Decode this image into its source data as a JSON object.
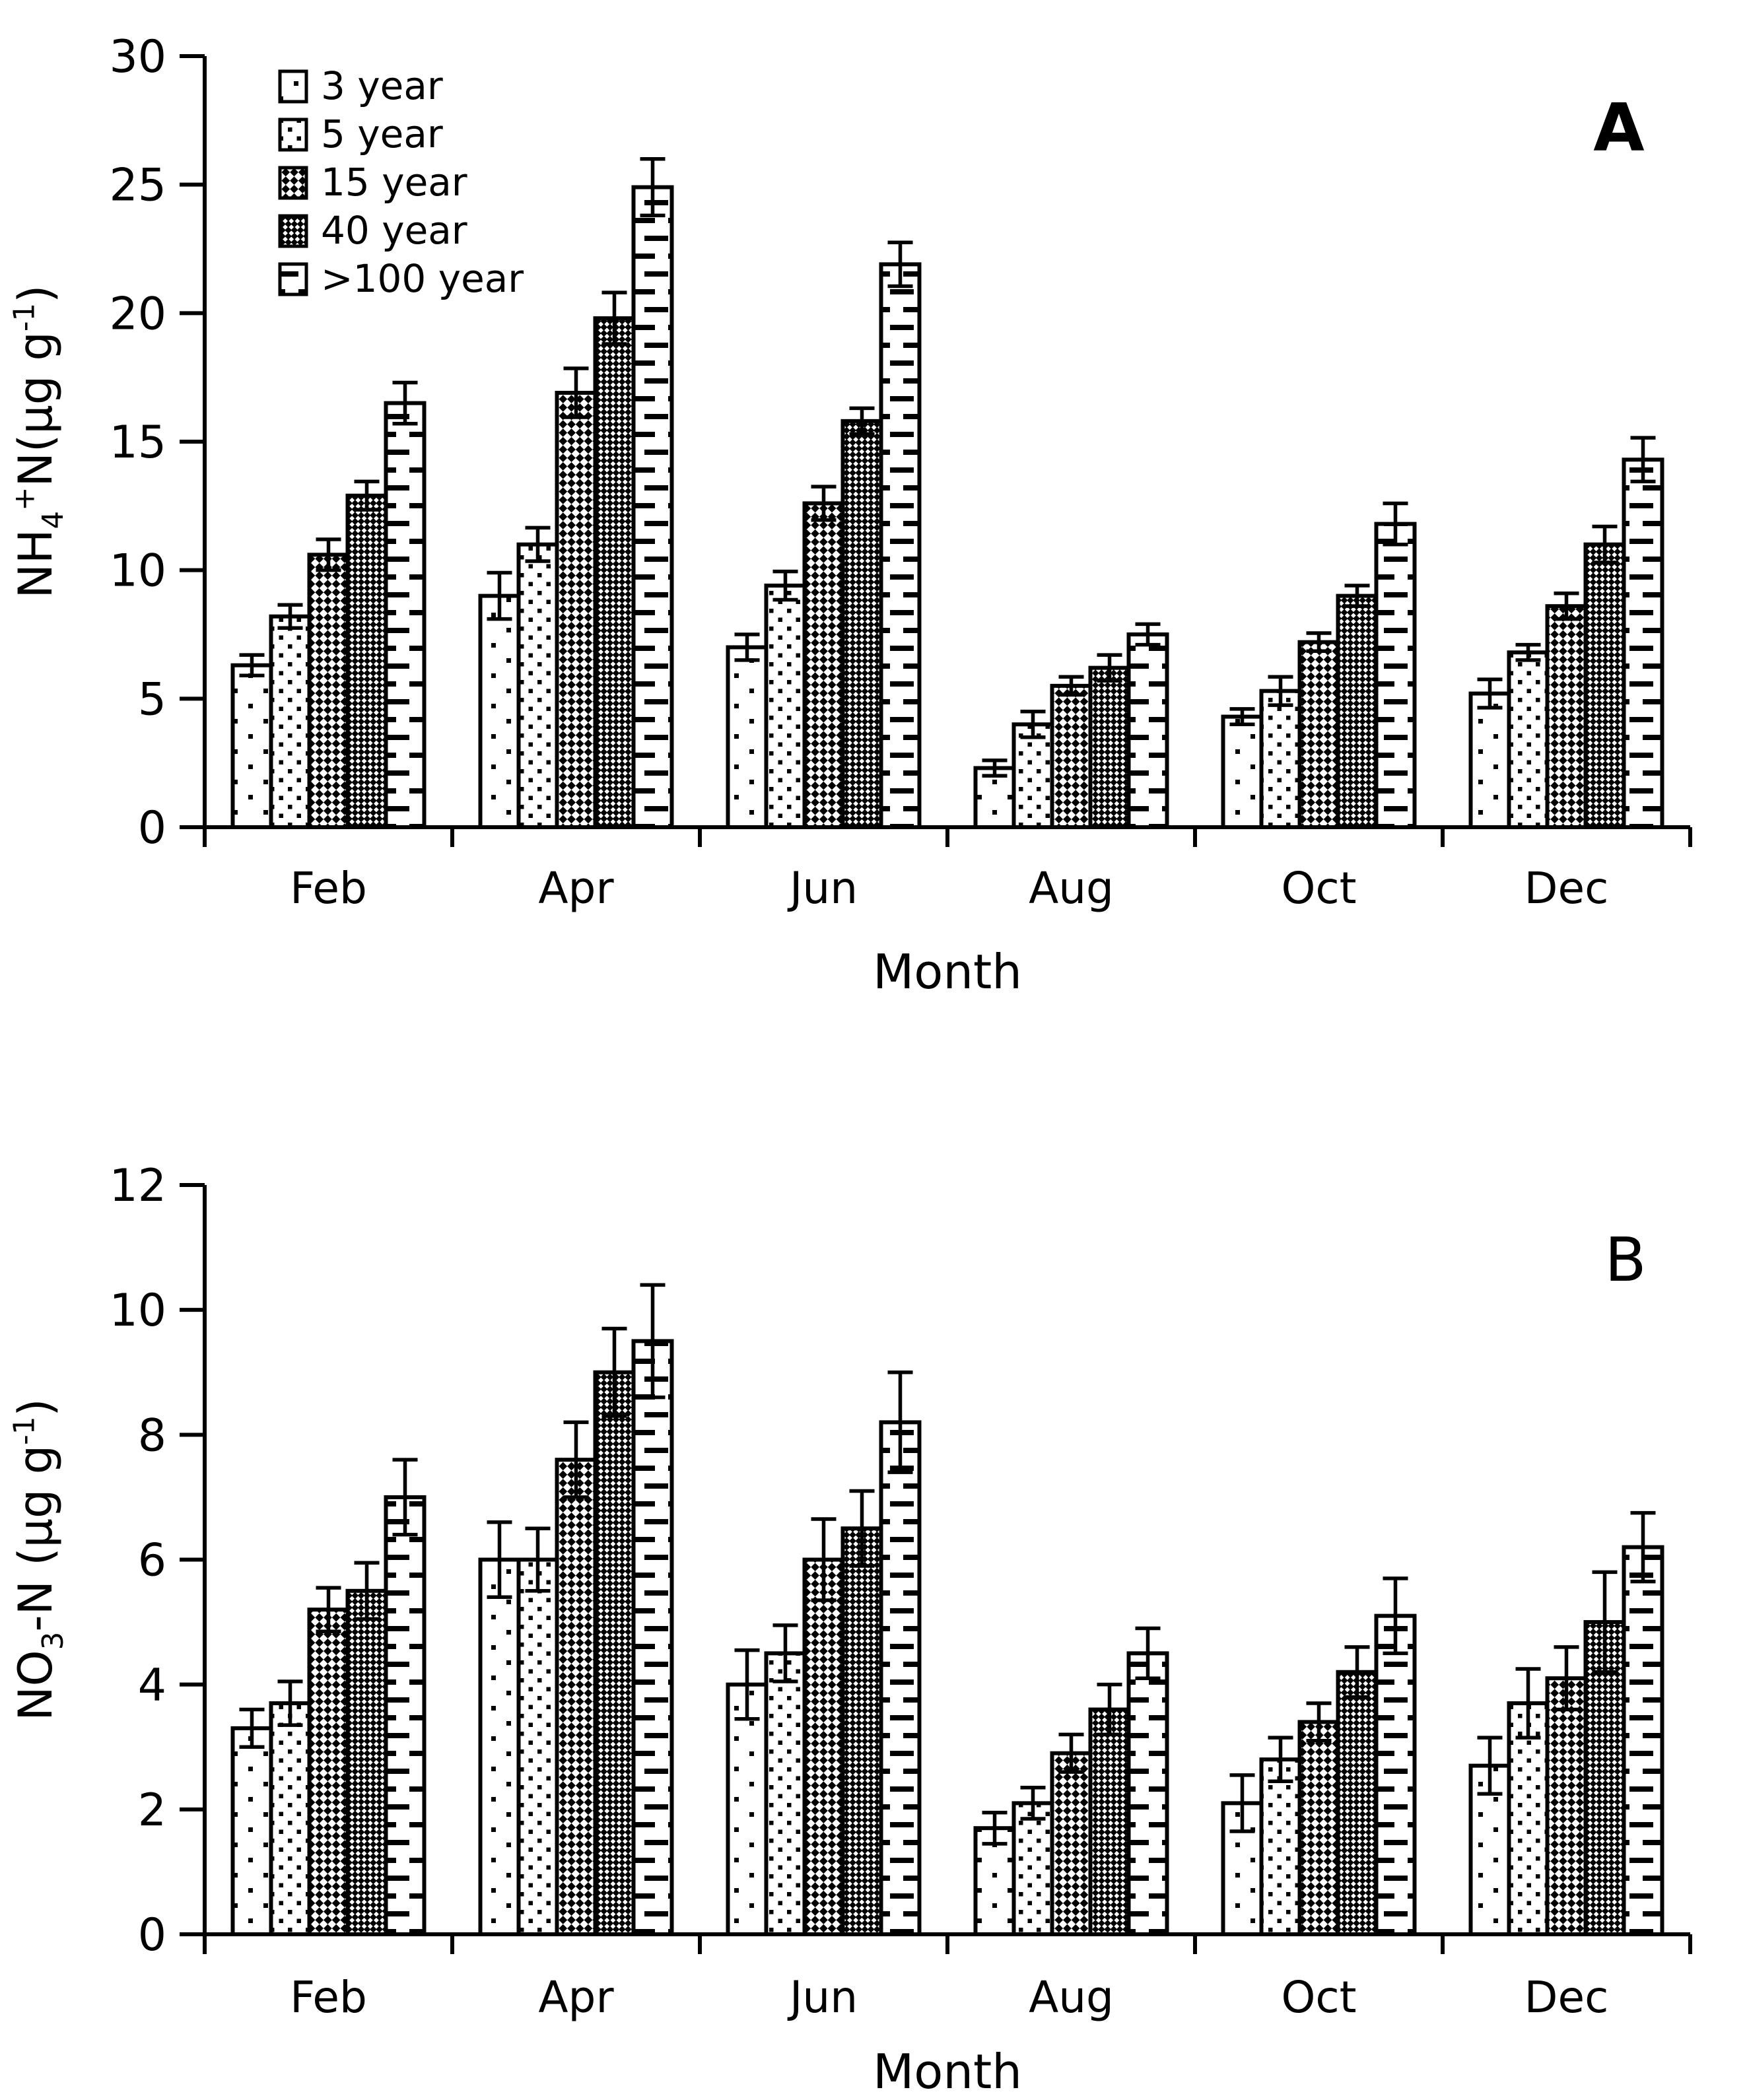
{
  "figure": {
    "background": "#ffffff",
    "ink_color": "#000000",
    "panels": [
      "A",
      "B"
    ],
    "legend": {
      "position": "top-left-inside-panel-A",
      "items": [
        {
          "label": "3 year",
          "pattern": "sparse-dots"
        },
        {
          "label": "5 year",
          "pattern": "dots"
        },
        {
          "label": "15 year",
          "pattern": "checker-diamond"
        },
        {
          "label": "40 year",
          "pattern": "checker-dark"
        },
        {
          "label": ">100 year",
          "pattern": "horizontal-dashes"
        }
      ]
    }
  },
  "chart_data": [
    {
      "type": "bar",
      "panel_label": "A",
      "title": "",
      "xlabel": "Month",
      "ylabel": "NH₄⁺N(µg g⁻¹)",
      "ylabel_parts": [
        [
          "NH",
          "n"
        ],
        [
          "4",
          "sub"
        ],
        [
          "+",
          "sup"
        ],
        [
          "N(µg g",
          "n"
        ],
        [
          "-1",
          "sup"
        ],
        [
          ")",
          "n"
        ]
      ],
      "categories": [
        "Feb",
        "Apr",
        "Jun",
        "Aug",
        "Oct",
        "Dec"
      ],
      "ylim": [
        0,
        30
      ],
      "yticks": [
        0,
        5,
        10,
        15,
        20,
        25,
        30
      ],
      "grid": false,
      "legend_position": "upper left",
      "error_bars": true,
      "series": [
        {
          "name": "3 year",
          "pattern": "sparse-dots",
          "values": [
            6.3,
            9.0,
            7.0,
            2.3,
            4.3,
            5.2
          ],
          "errors": [
            0.4,
            0.9,
            0.5,
            0.3,
            0.3,
            0.55
          ]
        },
        {
          "name": "5 year",
          "pattern": "dots",
          "values": [
            8.2,
            11.0,
            9.4,
            4.0,
            5.3,
            6.8
          ],
          "errors": [
            0.45,
            0.65,
            0.55,
            0.5,
            0.55,
            0.3
          ]
        },
        {
          "name": "15 year",
          "pattern": "checker-diamond",
          "values": [
            10.6,
            16.9,
            12.6,
            5.5,
            7.2,
            8.6
          ],
          "errors": [
            0.6,
            0.95,
            0.65,
            0.35,
            0.35,
            0.5
          ]
        },
        {
          "name": "40 year",
          "pattern": "checker-dark",
          "values": [
            12.9,
            19.8,
            15.8,
            6.2,
            9.0,
            11.0
          ],
          "errors": [
            0.55,
            1.0,
            0.5,
            0.5,
            0.4,
            0.7
          ]
        },
        {
          "name": ">100 year",
          "pattern": "horizontal-dashes",
          "values": [
            16.5,
            24.9,
            21.9,
            7.5,
            11.8,
            14.3
          ],
          "errors": [
            0.8,
            1.1,
            0.85,
            0.4,
            0.8,
            0.85
          ]
        }
      ]
    },
    {
      "type": "bar",
      "panel_label": "B",
      "title": "",
      "xlabel": "Month",
      "ylabel": "NO₃-N (µg g⁻¹)",
      "ylabel_parts": [
        [
          "NO",
          "n"
        ],
        [
          "3",
          "sub"
        ],
        [
          "-N (µg g",
          "n"
        ],
        [
          "-1",
          "sup"
        ],
        [
          ")",
          "n"
        ]
      ],
      "categories": [
        "Feb",
        "Apr",
        "Jun",
        "Aug",
        "Oct",
        "Dec"
      ],
      "ylim": [
        0,
        12
      ],
      "yticks": [
        0,
        2,
        4,
        6,
        8,
        10,
        12
      ],
      "grid": false,
      "legend_position": "none",
      "error_bars": true,
      "series": [
        {
          "name": "3 year",
          "pattern": "sparse-dots",
          "values": [
            3.3,
            6.0,
            4.0,
            1.7,
            2.1,
            2.7
          ],
          "errors": [
            0.3,
            0.6,
            0.55,
            0.25,
            0.45,
            0.45
          ]
        },
        {
          "name": "5 year",
          "pattern": "dots",
          "values": [
            3.7,
            6.0,
            4.5,
            2.1,
            2.8,
            3.7
          ],
          "errors": [
            0.35,
            0.5,
            0.45,
            0.25,
            0.35,
            0.55
          ]
        },
        {
          "name": "15 year",
          "pattern": "checker-diamond",
          "values": [
            5.2,
            7.6,
            6.0,
            2.9,
            3.4,
            4.1
          ],
          "errors": [
            0.35,
            0.6,
            0.65,
            0.3,
            0.3,
            0.5
          ]
        },
        {
          "name": "40 year",
          "pattern": "checker-dark",
          "values": [
            5.5,
            9.0,
            6.5,
            3.6,
            4.2,
            5.0
          ],
          "errors": [
            0.45,
            0.7,
            0.6,
            0.4,
            0.4,
            0.8
          ]
        },
        {
          "name": ">100 year",
          "pattern": "horizontal-dashes",
          "values": [
            7.0,
            9.5,
            8.2,
            4.5,
            5.1,
            6.2
          ],
          "errors": [
            0.6,
            0.9,
            0.8,
            0.4,
            0.6,
            0.55
          ]
        }
      ]
    }
  ]
}
